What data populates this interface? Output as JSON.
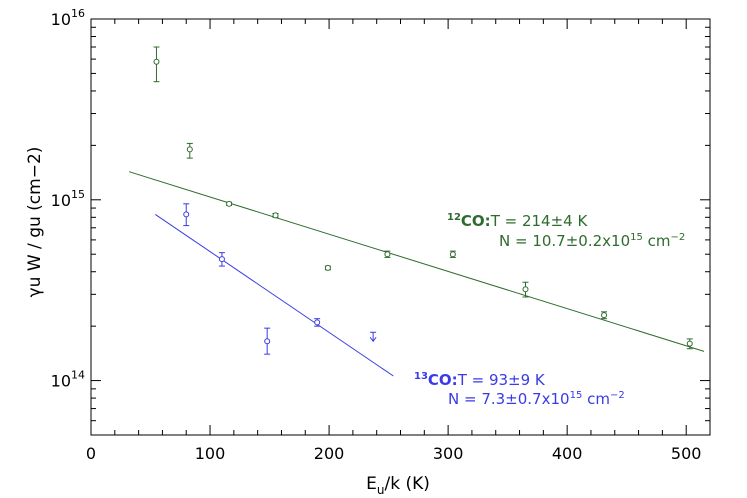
{
  "chart_data": {
    "type": "scatter",
    "xlabel_main": "E",
    "xlabel_sub": "u",
    "xlabel_rest": "/k (K)",
    "ylabel": "γu W / gu (cm−2)",
    "xlim": [
      0,
      520
    ],
    "ylim": [
      50000000000000.0,
      1e+16
    ],
    "yscale": "log",
    "x_ticks": [
      0,
      100,
      200,
      300,
      400,
      500
    ],
    "x_tick_labels": [
      "0",
      "100",
      "200",
      "300",
      "400",
      "500"
    ],
    "y_ticks": [
      100000000000000.0,
      1000000000000000.0,
      1e+16
    ],
    "y_tick_labels": [
      {
        "base": "10",
        "exp": "14"
      },
      {
        "base": "10",
        "exp": "15"
      },
      {
        "base": "10",
        "exp": "16"
      }
    ],
    "colors": {
      "co12": "#2e6b2e",
      "co13": "#3a3ae8",
      "axis": "#000000"
    },
    "series": [
      {
        "name": "12CO",
        "color": "#2e6b2e",
        "points": [
          {
            "x": 55,
            "y": 5800000000000000.0,
            "ylo": 4500000000000000.0,
            "yhi": 7000000000000000.0
          },
          {
            "x": 83,
            "y": 1900000000000000.0,
            "ylo": 1700000000000000.0,
            "yhi": 2050000000000000.0
          },
          {
            "x": 116,
            "y": 950000000000000.0,
            "ylo": 930000000000000.0,
            "yhi": 970000000000000.0
          },
          {
            "x": 155,
            "y": 820000000000000.0,
            "ylo": 800000000000000.0,
            "yhi": 840000000000000.0
          },
          {
            "x": 199,
            "y": 420000000000000.0,
            "ylo": 410000000000000.0,
            "yhi": 430000000000000.0
          },
          {
            "x": 249,
            "y": 500000000000000.0,
            "ylo": 480000000000000.0,
            "yhi": 520000000000000.0
          },
          {
            "x": 304,
            "y": 500000000000000.0,
            "ylo": 480000000000000.0,
            "yhi": 520000000000000.0
          },
          {
            "x": 365,
            "y": 320000000000000.0,
            "ylo": 290000000000000.0,
            "yhi": 350000000000000.0
          },
          {
            "x": 431,
            "y": 230000000000000.0,
            "ylo": 220000000000000.0,
            "yhi": 240000000000000.0
          },
          {
            "x": 503,
            "y": 160000000000000.0,
            "ylo": 150000000000000.0,
            "yhi": 170000000000000.0
          }
        ],
        "fit": {
          "x1": 32,
          "y1": 1430000000000000.0,
          "x2": 515,
          "y2": 145000000000000.0
        }
      },
      {
        "name": "13CO",
        "color": "#3a3ae8",
        "points": [
          {
            "x": 80,
            "y": 830000000000000.0,
            "ylo": 720000000000000.0,
            "yhi": 950000000000000.0
          },
          {
            "x": 110,
            "y": 470000000000000.0,
            "ylo": 430000000000000.0,
            "yhi": 510000000000000.0
          },
          {
            "x": 148,
            "y": 165000000000000.0,
            "ylo": 140000000000000.0,
            "yhi": 195000000000000.0
          },
          {
            "x": 190,
            "y": 210000000000000.0,
            "ylo": 200000000000000.0,
            "yhi": 220000000000000.0
          }
        ],
        "upper_limits": [
          {
            "x": 237,
            "y": 165000000000000.0,
            "top": 185000000000000.0
          }
        ],
        "fit": {
          "x1": 54,
          "y1": 830000000000000.0,
          "x2": 254,
          "y2": 106000000000000.0
        }
      }
    ],
    "annotations": {
      "co12": {
        "sup": "12",
        "species": "CO:",
        "line1_rest": "T = 214±4 K",
        "line2_pre": "N = 10.7±0.2x10",
        "line2_exp": "15",
        "line2_unit": " cm",
        "line2_unit_exp": "−2"
      },
      "co13": {
        "sup": "13",
        "species": "CO:",
        "line1_rest": "T = 93±9 K",
        "line2_pre": "N = 7.3±0.7x10",
        "line2_exp": "15",
        "line2_unit": " cm",
        "line2_unit_exp": "−2"
      }
    }
  }
}
